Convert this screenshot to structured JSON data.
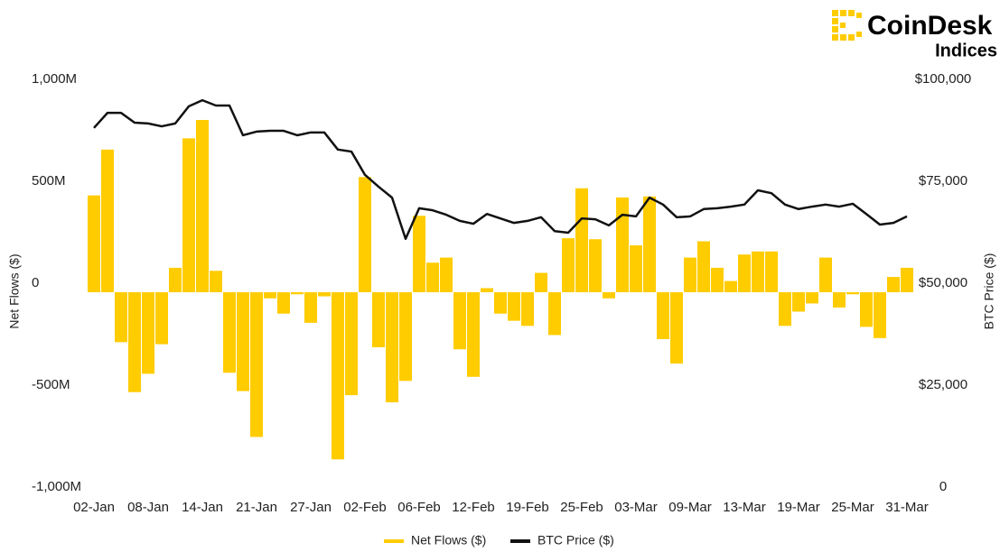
{
  "logo": {
    "name": "CoinDesk",
    "product": "Indices"
  },
  "chart_data": {
    "type": "bar_line",
    "y_label": "Net Flows ($)",
    "y2_label": "BTC Price ($)",
    "categories": [
      "02-Jan",
      null,
      null,
      null,
      "08-Jan",
      null,
      null,
      null,
      "14-Jan",
      null,
      null,
      null,
      "21-Jan",
      null,
      null,
      null,
      "27-Jan",
      null,
      null,
      null,
      "02-Feb",
      null,
      null,
      null,
      "06-Feb",
      null,
      null,
      null,
      "12-Feb",
      null,
      null,
      null,
      "19-Feb",
      null,
      null,
      null,
      "25-Feb",
      null,
      null,
      null,
      "03-Mar",
      null,
      null,
      null,
      "09-Mar",
      null,
      null,
      null,
      "13-Mar",
      null,
      null,
      null,
      "19-Mar",
      null,
      null,
      null,
      "25-Mar",
      null,
      null,
      null,
      "31-Mar"
    ],
    "series": [
      {
        "name": "Net Flows ($)",
        "kind": "bar",
        "color": "#ffcc00",
        "values": [
          475,
          700,
          -245,
          -490,
          -400,
          -255,
          120,
          755,
          845,
          105,
          -395,
          -485,
          -710,
          -30,
          -105,
          -10,
          -150,
          -20,
          -820,
          -505,
          565,
          -270,
          -540,
          -435,
          375,
          145,
          170,
          -280,
          -415,
          20,
          -105,
          -140,
          -165,
          95,
          -210,
          265,
          510,
          260,
          -30,
          465,
          230,
          470,
          -230,
          -350,
          170,
          250,
          120,
          55,
          185,
          200,
          200,
          -165,
          -95,
          -55,
          170,
          -75,
          -10,
          -170,
          -225,
          75,
          120
        ]
      },
      {
        "name": "BTC Price ($)",
        "kind": "line",
        "axis": "y2",
        "color": "#111111",
        "values": [
          90300,
          94000,
          94000,
          91600,
          91400,
          90700,
          91400,
          95600,
          97100,
          95800,
          95800,
          88500,
          89400,
          89600,
          89600,
          88500,
          89200,
          89200,
          85000,
          84500,
          78800,
          75900,
          73200,
          63100,
          70600,
          70100,
          69000,
          67500,
          66800,
          69200,
          68100,
          67000,
          67500,
          68400,
          65000,
          64600,
          68100,
          67900,
          66400,
          69000,
          68600,
          73200,
          71500,
          68400,
          68600,
          70400,
          70600,
          71000,
          71500,
          75000,
          74300,
          71500,
          70400,
          71000,
          71500,
          71000,
          71700,
          69200,
          66600,
          67000,
          68600
        ]
      }
    ],
    "ylim": [
      -1000,
      1000
    ],
    "yticks": [
      {
        "value": -1000,
        "label": "-1,000M"
      },
      {
        "value": -500,
        "label": "-500M"
      },
      0,
      {
        "value": 500,
        "label": "500M"
      },
      {
        "value": 1000,
        "label": "1,000M"
      }
    ],
    "y2lim": [
      0,
      100000
    ],
    "y2ticks": [
      0,
      {
        "value": 25000,
        "label": "$25,000"
      },
      {
        "value": 50000,
        "label": "$50,000"
      },
      {
        "value": 75000,
        "label": "$75,000"
      },
      {
        "value": 100000,
        "label": "$100,000"
      }
    ],
    "grid": false,
    "legend": "bottom"
  }
}
